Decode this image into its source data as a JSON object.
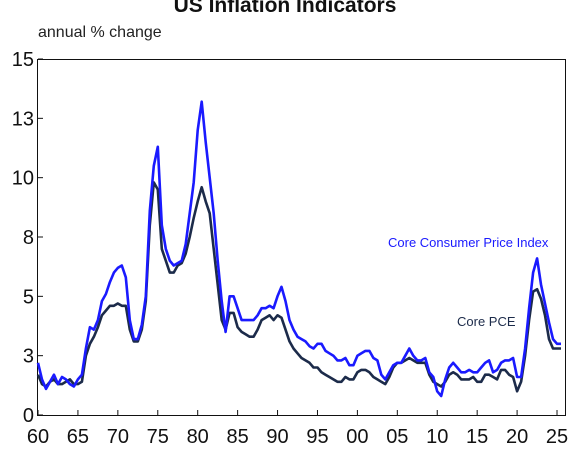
{
  "chart_data": {
    "type": "line",
    "title": "US Inflation Indicators",
    "subtitle": "annual % change",
    "xlim": [
      1960,
      2026
    ],
    "ylim": [
      0,
      15
    ],
    "x_ticks": [
      1960,
      1965,
      1970,
      1975,
      1980,
      1985,
      1990,
      1995,
      2000,
      2005,
      2010,
      2015,
      2020,
      2025
    ],
    "x_tick_labels": [
      "60",
      "65",
      "70",
      "75",
      "80",
      "85",
      "90",
      "95",
      "00",
      "05",
      "10",
      "15",
      "20",
      "25"
    ],
    "y_ticks": [
      0,
      2.5,
      5,
      7.5,
      10,
      12.5,
      15
    ],
    "y_tick_labels": [
      "0",
      "3",
      "5",
      "8",
      "10",
      "13",
      "15"
    ],
    "grid": false,
    "series": [
      {
        "name": "Core Consumer Price Index",
        "color": "#1a1aff",
        "x": [
          1960,
          1960.5,
          1961,
          1961.5,
          1962,
          1962.5,
          1963,
          1963.5,
          1964,
          1964.5,
          1965,
          1965.5,
          1966,
          1966.5,
          1967,
          1967.5,
          1968,
          1968.5,
          1969,
          1969.5,
          1970,
          1970.5,
          1971,
          1971.5,
          1972,
          1972.5,
          1973,
          1973.5,
          1974,
          1974.5,
          1975,
          1975.5,
          1976,
          1976.5,
          1977,
          1977.5,
          1978,
          1978.5,
          1979,
          1979.5,
          1980,
          1980.5,
          1981,
          1981.5,
          1982,
          1982.5,
          1983,
          1983.5,
          1984,
          1984.5,
          1985,
          1985.5,
          1986,
          1986.5,
          1987,
          1987.5,
          1988,
          1988.5,
          1989,
          1989.5,
          1990,
          1990.5,
          1991,
          1991.5,
          1992,
          1992.5,
          1993,
          1993.5,
          1994,
          1994.5,
          1995,
          1995.5,
          1996,
          1996.5,
          1997,
          1997.5,
          1998,
          1998.5,
          1999,
          1999.5,
          2000,
          2000.5,
          2001,
          2001.5,
          2002,
          2002.5,
          2003,
          2003.5,
          2004,
          2004.5,
          2005,
          2005.5,
          2006,
          2006.5,
          2007,
          2007.5,
          2008,
          2008.5,
          2009,
          2009.5,
          2010,
          2010.5,
          2011,
          2011.5,
          2012,
          2012.5,
          2013,
          2013.5,
          2014,
          2014.5,
          2015,
          2015.5,
          2016,
          2016.5,
          2017,
          2017.5,
          2018,
          2018.5,
          2019,
          2019.5,
          2020,
          2020.5,
          2021,
          2021.5,
          2022,
          2022.5,
          2023,
          2023.5,
          2024,
          2024.5,
          2025,
          2025.5
        ],
        "values": [
          2.2,
          1.5,
          1.1,
          1.4,
          1.7,
          1.3,
          1.6,
          1.5,
          1.3,
          1.2,
          1.5,
          1.7,
          2.8,
          3.7,
          3.6,
          4.0,
          4.8,
          5.1,
          5.6,
          6.0,
          6.2,
          6.3,
          5.8,
          4.0,
          3.2,
          3.2,
          3.8,
          5.0,
          8.6,
          10.5,
          11.3,
          8.0,
          7.0,
          6.5,
          6.3,
          6.4,
          6.5,
          7.2,
          8.5,
          9.8,
          12.0,
          13.2,
          11.5,
          10.0,
          8.5,
          6.5,
          4.8,
          3.5,
          5.0,
          5.0,
          4.5,
          4.0,
          4.0,
          4.0,
          4.0,
          4.2,
          4.5,
          4.5,
          4.6,
          4.5,
          5.0,
          5.4,
          4.8,
          4.0,
          3.6,
          3.3,
          3.2,
          3.1,
          2.9,
          2.8,
          3.0,
          3.0,
          2.7,
          2.6,
          2.5,
          2.3,
          2.3,
          2.4,
          2.1,
          2.1,
          2.5,
          2.6,
          2.7,
          2.7,
          2.4,
          2.3,
          1.7,
          1.5,
          1.8,
          2.1,
          2.2,
          2.2,
          2.5,
          2.8,
          2.5,
          2.3,
          2.3,
          2.4,
          1.8,
          1.6,
          1.0,
          0.8,
          1.5,
          2.0,
          2.2,
          2.0,
          1.8,
          1.8,
          1.9,
          1.8,
          1.8,
          2.0,
          2.2,
          2.3,
          1.8,
          1.9,
          2.2,
          2.3,
          2.3,
          2.4,
          1.6,
          1.6,
          2.8,
          4.5,
          6.0,
          6.6,
          5.5,
          4.7,
          3.9,
          3.2,
          3.0,
          3.0
        ]
      },
      {
        "name": "Core PCE",
        "color": "#1c2b4a",
        "x": [
          1960,
          1960.5,
          1961,
          1961.5,
          1962,
          1962.5,
          1963,
          1963.5,
          1964,
          1964.5,
          1965,
          1965.5,
          1966,
          1966.5,
          1967,
          1967.5,
          1968,
          1968.5,
          1969,
          1969.5,
          1970,
          1970.5,
          1971,
          1971.5,
          1972,
          1972.5,
          1973,
          1973.5,
          1974,
          1974.5,
          1975,
          1975.5,
          1976,
          1976.5,
          1977,
          1977.5,
          1978,
          1978.5,
          1979,
          1979.5,
          1980,
          1980.5,
          1981,
          1981.5,
          1982,
          1982.5,
          1983,
          1983.5,
          1984,
          1984.5,
          1985,
          1985.5,
          1986,
          1986.5,
          1987,
          1987.5,
          1988,
          1988.5,
          1989,
          1989.5,
          1990,
          1990.5,
          1991,
          1991.5,
          1992,
          1992.5,
          1993,
          1993.5,
          1994,
          1994.5,
          1995,
          1995.5,
          1996,
          1996.5,
          1997,
          1997.5,
          1998,
          1998.5,
          1999,
          1999.5,
          2000,
          2000.5,
          2001,
          2001.5,
          2002,
          2002.5,
          2003,
          2003.5,
          2004,
          2004.5,
          2005,
          2005.5,
          2006,
          2006.5,
          2007,
          2007.5,
          2008,
          2008.5,
          2009,
          2009.5,
          2010,
          2010.5,
          2011,
          2011.5,
          2012,
          2012.5,
          2013,
          2013.5,
          2014,
          2014.5,
          2015,
          2015.5,
          2016,
          2016.5,
          2017,
          2017.5,
          2018,
          2018.5,
          2019,
          2019.5,
          2020,
          2020.5,
          2021,
          2021.5,
          2022,
          2022.5,
          2023,
          2023.5,
          2024,
          2024.5,
          2025,
          2025.5
        ],
        "values": [
          1.7,
          1.3,
          1.2,
          1.4,
          1.5,
          1.3,
          1.3,
          1.4,
          1.5,
          1.3,
          1.3,
          1.4,
          2.5,
          3.0,
          3.3,
          3.7,
          4.2,
          4.4,
          4.6,
          4.6,
          4.7,
          4.6,
          4.6,
          3.6,
          3.1,
          3.1,
          3.6,
          4.8,
          8.0,
          9.8,
          9.5,
          7.0,
          6.5,
          6.0,
          6.0,
          6.3,
          6.4,
          6.8,
          7.5,
          8.3,
          9.0,
          9.6,
          9.0,
          8.5,
          7.0,
          5.5,
          4.0,
          3.6,
          4.3,
          4.3,
          3.7,
          3.5,
          3.4,
          3.3,
          3.3,
          3.6,
          4.0,
          4.1,
          4.2,
          4.0,
          4.2,
          4.1,
          3.6,
          3.1,
          2.8,
          2.6,
          2.4,
          2.3,
          2.2,
          2.0,
          2.0,
          1.8,
          1.7,
          1.6,
          1.5,
          1.4,
          1.4,
          1.6,
          1.5,
          1.5,
          1.8,
          1.9,
          1.9,
          1.8,
          1.6,
          1.5,
          1.4,
          1.3,
          1.6,
          2.0,
          2.2,
          2.2,
          2.3,
          2.4,
          2.3,
          2.2,
          2.2,
          2.2,
          1.7,
          1.4,
          1.3,
          1.2,
          1.4,
          1.7,
          1.8,
          1.7,
          1.5,
          1.5,
          1.5,
          1.6,
          1.4,
          1.4,
          1.7,
          1.7,
          1.6,
          1.5,
          1.9,
          1.9,
          1.7,
          1.6,
          1.0,
          1.4,
          2.5,
          4.0,
          5.2,
          5.3,
          4.9,
          4.2,
          3.2,
          2.8,
          2.8,
          2.8
        ]
      }
    ]
  }
}
